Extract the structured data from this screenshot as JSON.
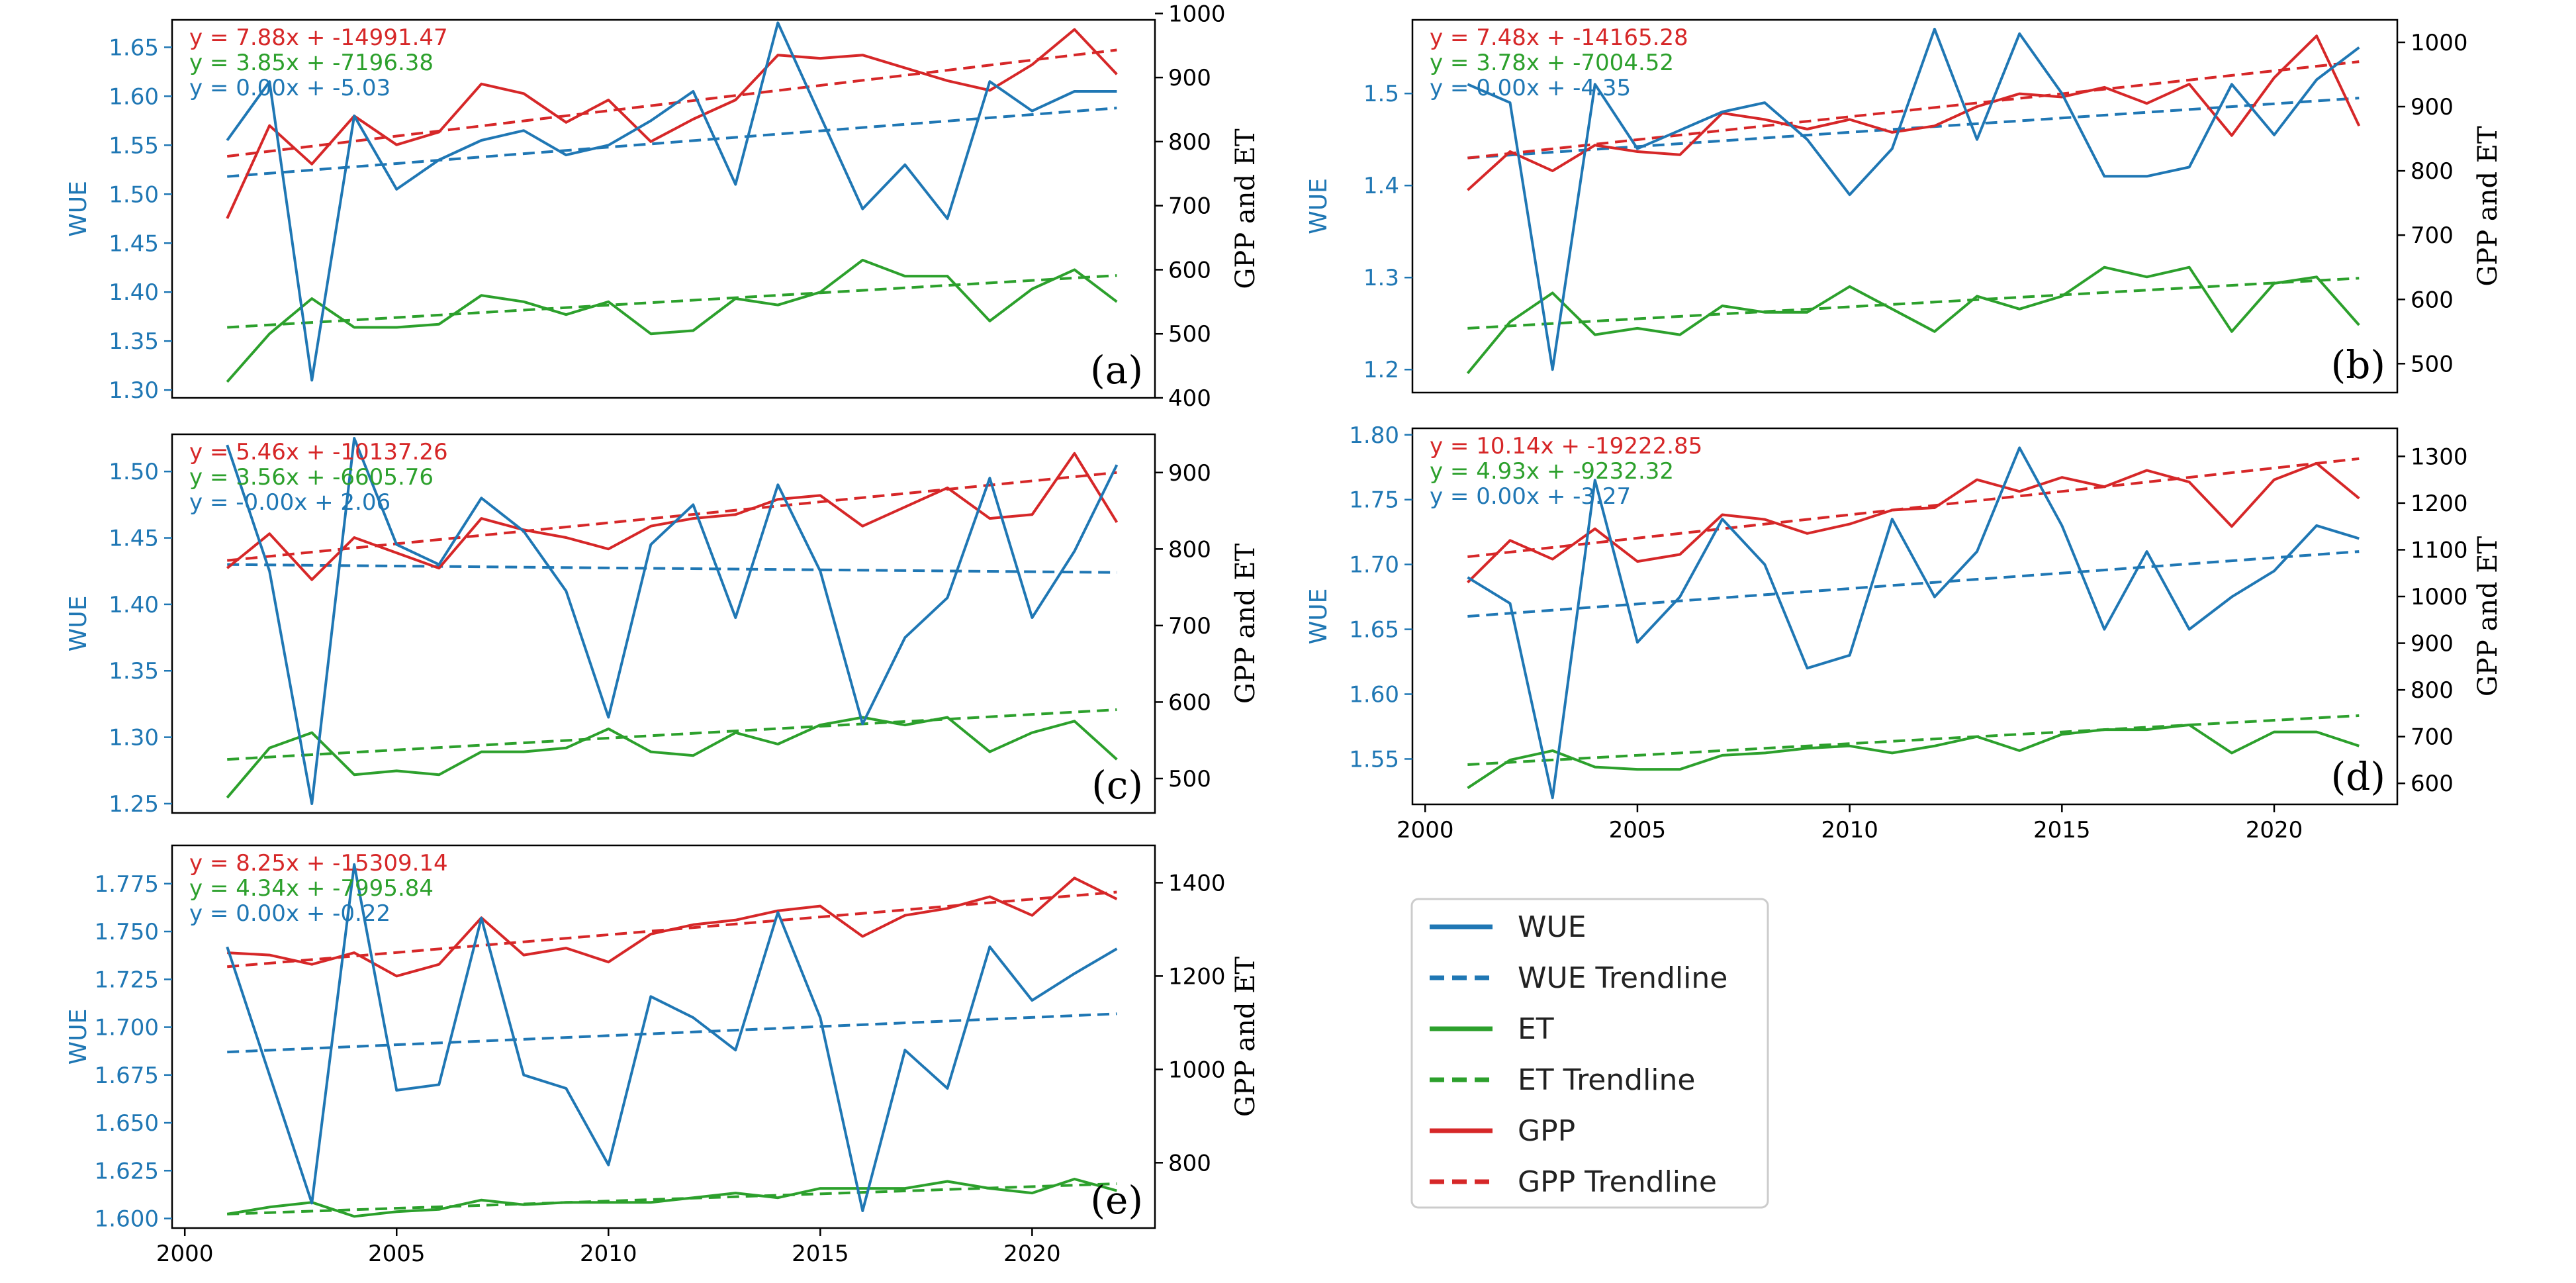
{
  "colors": {
    "wue": "#1f77b4",
    "et": "#2ca02c",
    "gpp": "#d62728",
    "axis": "#000000"
  },
  "legend": {
    "items": [
      {
        "label": "WUE",
        "series": "wue",
        "dashed": false
      },
      {
        "label": "WUE Trendline",
        "series": "wue",
        "dashed": true
      },
      {
        "label": "ET",
        "series": "et",
        "dashed": false
      },
      {
        "label": "ET Trendline",
        "series": "et",
        "dashed": true
      },
      {
        "label": "GPP",
        "series": "gpp",
        "dashed": false
      },
      {
        "label": "GPP Trendline",
        "series": "gpp",
        "dashed": true
      }
    ]
  },
  "chart_data": [
    {
      "type": "line",
      "panel_label": "(a)",
      "y_left_label": "WUE",
      "y_right_label": "GPP and ET",
      "xlim": [
        1999.7,
        2022.9
      ],
      "x_ticks": [],
      "y_left_lim": [
        1.292,
        1.678
      ],
      "y_left_ticks": [
        "1.30",
        "1.35",
        "1.40",
        "1.45",
        "1.50",
        "1.55",
        "1.60",
        "1.65"
      ],
      "y_right_lim": [
        400,
        990
      ],
      "y_right_ticks": [
        "400",
        "500",
        "600",
        "700",
        "800",
        "900",
        "1000"
      ],
      "equations": {
        "gpp": "y = 7.88x + -14991.47",
        "et": "y = 3.85x + -7196.38",
        "wue": "y = 0.00x + -5.03"
      },
      "x": [
        2001,
        2002,
        2003,
        2004,
        2005,
        2006,
        2007,
        2008,
        2009,
        2010,
        2011,
        2012,
        2013,
        2014,
        2015,
        2016,
        2017,
        2018,
        2019,
        2020,
        2021,
        2022
      ],
      "wue": [
        1.555,
        1.615,
        1.31,
        1.58,
        1.505,
        1.535,
        1.555,
        1.565,
        1.54,
        1.55,
        1.575,
        1.605,
        1.51,
        1.675,
        1.58,
        1.485,
        1.53,
        1.475,
        1.615,
        1.585,
        1.605,
        1.605
      ],
      "wue_trend": [
        1.518,
        1.588
      ],
      "et": [
        425,
        500,
        555,
        510,
        510,
        515,
        560,
        550,
        530,
        550,
        500,
        505,
        555,
        545,
        565,
        615,
        590,
        590,
        520,
        570,
        600,
        550
      ],
      "et_trend": [
        510,
        591
      ],
      "gpp": [
        680,
        825,
        765,
        840,
        795,
        815,
        890,
        875,
        830,
        865,
        800,
        835,
        865,
        935,
        930,
        935,
        915,
        895,
        880,
        920,
        975,
        905
      ],
      "gpp_trend": [
        777,
        943
      ]
    },
    {
      "type": "line",
      "panel_label": "(b)",
      "y_left_label": "WUE",
      "y_right_label": "GPP and ET",
      "xlim": [
        1999.7,
        2022.9
      ],
      "x_ticks": [],
      "y_left_lim": [
        1.175,
        1.58
      ],
      "y_left_ticks": [
        "1.2",
        "1.3",
        "1.4",
        "1.5"
      ],
      "y_right_lim": [
        455,
        1035
      ],
      "y_right_ticks": [
        "500",
        "600",
        "700",
        "800",
        "900",
        "1000"
      ],
      "equations": {
        "gpp": "y = 7.48x + -14165.28",
        "et": "y = 3.78x + -7004.52",
        "wue": "y = 0.00x + -4.35"
      },
      "x": [
        2001,
        2002,
        2003,
        2004,
        2005,
        2006,
        2007,
        2008,
        2009,
        2010,
        2011,
        2012,
        2013,
        2014,
        2015,
        2016,
        2017,
        2018,
        2019,
        2020,
        2021,
        2022
      ],
      "wue": [
        1.51,
        1.49,
        1.2,
        1.51,
        1.44,
        1.46,
        1.48,
        1.49,
        1.45,
        1.39,
        1.44,
        1.57,
        1.45,
        1.565,
        1.5,
        1.41,
        1.41,
        1.42,
        1.51,
        1.455,
        1.515,
        1.55
      ],
      "wue_trend": [
        1.43,
        1.495
      ],
      "et": [
        485,
        565,
        610,
        545,
        555,
        545,
        590,
        580,
        580,
        620,
        585,
        550,
        605,
        585,
        605,
        650,
        635,
        650,
        550,
        625,
        635,
        560
      ],
      "et_trend": [
        555,
        633
      ],
      "gpp": [
        770,
        830,
        800,
        840,
        830,
        825,
        890,
        880,
        865,
        880,
        860,
        870,
        900,
        920,
        915,
        930,
        905,
        935,
        855,
        945,
        1010,
        870
      ],
      "gpp_trend": [
        820,
        970
      ]
    },
    {
      "type": "line",
      "panel_label": "(c)",
      "y_left_label": "WUE",
      "y_right_label": "GPP and ET",
      "xlim": [
        1999.7,
        2022.9
      ],
      "x_ticks": [],
      "y_left_lim": [
        1.243,
        1.528
      ],
      "y_left_ticks": [
        "1.25",
        "1.30",
        "1.35",
        "1.40",
        "1.45",
        "1.50"
      ],
      "y_right_lim": [
        455,
        950
      ],
      "y_right_ticks": [
        "500",
        "600",
        "700",
        "800",
        "900"
      ],
      "equations": {
        "gpp": "y = 5.46x + -10137.26",
        "et": "y = 3.56x + -6605.76",
        "wue": "y = -0.00x + 2.06"
      },
      "x": [
        2001,
        2002,
        2003,
        2004,
        2005,
        2006,
        2007,
        2008,
        2009,
        2010,
        2011,
        2012,
        2013,
        2014,
        2015,
        2016,
        2017,
        2018,
        2019,
        2020,
        2021,
        2022
      ],
      "wue": [
        1.52,
        1.425,
        1.25,
        1.525,
        1.445,
        1.43,
        1.48,
        1.455,
        1.41,
        1.315,
        1.445,
        1.475,
        1.39,
        1.49,
        1.425,
        1.31,
        1.375,
        1.405,
        1.495,
        1.39,
        1.44,
        1.505
      ],
      "wue_trend": [
        1.43,
        1.424
      ],
      "et": [
        475,
        540,
        560,
        505,
        510,
        505,
        535,
        535,
        540,
        565,
        535,
        530,
        560,
        545,
        570,
        580,
        570,
        580,
        535,
        560,
        575,
        525
      ],
      "et_trend": [
        525,
        590
      ],
      "gpp": [
        775,
        820,
        760,
        815,
        795,
        775,
        840,
        825,
        815,
        800,
        830,
        840,
        845,
        865,
        870,
        830,
        855,
        880,
        840,
        845,
        925,
        835
      ],
      "gpp_trend": [
        785,
        900
      ]
    },
    {
      "type": "line",
      "panel_label": "(d)",
      "y_left_label": "WUE",
      "y_right_label": "GPP and ET",
      "xlim": [
        1999.7,
        2022.9
      ],
      "x_ticks": [
        "2000",
        "2005",
        "2010",
        "2015",
        "2020"
      ],
      "y_left_lim": [
        1.515,
        1.805
      ],
      "y_left_ticks": [
        "1.55",
        "1.60",
        "1.65",
        "1.70",
        "1.75",
        "1.80"
      ],
      "y_right_lim": [
        555,
        1360
      ],
      "y_right_ticks": [
        "600",
        "700",
        "800",
        "900",
        "1000",
        "1100",
        "1200",
        "1300"
      ],
      "equations": {
        "gpp": "y = 10.14x + -19222.85",
        "et": "y = 4.93x + -9232.32",
        "wue": "y = 0.00x + -3.27"
      },
      "x": [
        2001,
        2002,
        2003,
        2004,
        2005,
        2006,
        2007,
        2008,
        2009,
        2010,
        2011,
        2012,
        2013,
        2014,
        2015,
        2016,
        2017,
        2018,
        2019,
        2020,
        2021,
        2022
      ],
      "wue": [
        1.69,
        1.67,
        1.52,
        1.765,
        1.64,
        1.675,
        1.735,
        1.7,
        1.62,
        1.63,
        1.735,
        1.675,
        1.71,
        1.79,
        1.73,
        1.65,
        1.71,
        1.65,
        1.675,
        1.695,
        1.73,
        1.72
      ],
      "wue_trend": [
        1.66,
        1.71
      ],
      "et": [
        590,
        650,
        670,
        635,
        630,
        630,
        660,
        665,
        675,
        680,
        665,
        680,
        700,
        670,
        705,
        715,
        715,
        725,
        665,
        710,
        710,
        680
      ],
      "et_trend": [
        640,
        745
      ],
      "gpp": [
        1030,
        1120,
        1080,
        1145,
        1075,
        1090,
        1175,
        1165,
        1135,
        1155,
        1185,
        1190,
        1250,
        1225,
        1255,
        1235,
        1270,
        1245,
        1150,
        1250,
        1285,
        1210
      ],
      "gpp_trend": [
        1085,
        1295
      ]
    },
    {
      "type": "line",
      "panel_label": "(e)",
      "y_left_label": "WUE",
      "y_right_label": "GPP and ET",
      "xlim": [
        1999.7,
        2022.9
      ],
      "x_ticks": [
        "2000",
        "2005",
        "2010",
        "2015",
        "2020"
      ],
      "y_left_lim": [
        1.595,
        1.795
      ],
      "y_left_ticks": [
        "1.600",
        "1.625",
        "1.650",
        "1.675",
        "1.700",
        "1.725",
        "1.750",
        "1.775"
      ],
      "y_right_lim": [
        660,
        1480
      ],
      "y_right_ticks": [
        "800",
        "1000",
        "1200",
        "1400"
      ],
      "equations": {
        "gpp": "y = 8.25x + -15309.14",
        "et": "y = 4.34x + -7995.84",
        "wue": "y = 0.00x + -0.22"
      },
      "x": [
        2001,
        2002,
        2003,
        2004,
        2005,
        2006,
        2007,
        2008,
        2009,
        2010,
        2011,
        2012,
        2013,
        2014,
        2015,
        2016,
        2017,
        2018,
        2019,
        2020,
        2021,
        2022
      ],
      "wue": [
        1.742,
        1.675,
        1.608,
        1.785,
        1.667,
        1.67,
        1.757,
        1.675,
        1.668,
        1.628,
        1.716,
        1.705,
        1.688,
        1.76,
        1.705,
        1.604,
        1.688,
        1.668,
        1.742,
        1.714,
        1.728,
        1.741
      ],
      "wue_trend": [
        1.687,
        1.707
      ],
      "et": [
        690,
        705,
        715,
        685,
        695,
        700,
        720,
        710,
        715,
        715,
        715,
        725,
        735,
        725,
        745,
        745,
        745,
        760,
        745,
        735,
        765,
        740
      ],
      "et_trend": [
        690,
        755
      ],
      "gpp": [
        1250,
        1245,
        1225,
        1250,
        1200,
        1225,
        1325,
        1245,
        1260,
        1230,
        1290,
        1310,
        1320,
        1340,
        1350,
        1285,
        1330,
        1345,
        1370,
        1330,
        1410,
        1365
      ],
      "gpp_trend": [
        1220,
        1380
      ]
    }
  ]
}
